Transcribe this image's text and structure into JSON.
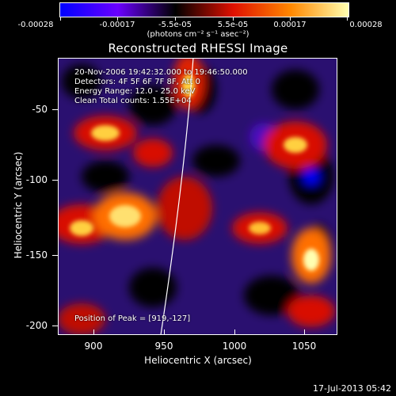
{
  "colorbar": {
    "tick_labels": [
      "-0.00028",
      "-0.00017",
      "-5.5e-05",
      "5.5e-05",
      "0.00017",
      "0.00028"
    ],
    "units": "(photons cm⁻² s⁻¹ asec⁻²)",
    "colors": [
      "#0000ff",
      "#6a00ff",
      "#000000",
      "#e01000",
      "#ff8800",
      "#ffffb0"
    ]
  },
  "title": "Reconstructed RHESSI Image",
  "info": {
    "time_range": "20-Nov-2006 19:42:32.000 to 19:46:50.000",
    "detectors": "Detectors: 4F 5F 6F 7F 8F, Att 0",
    "energy": "Energy Range: 12.0 - 25.0 keV",
    "clean": "Clean    Total counts: 1.55E+04",
    "peak": "Position of Peak = [919,-127]"
  },
  "axes": {
    "xlabel": "Heliocentric X (arcsec)",
    "ylabel": "Heliocentric Y (arcsec)",
    "xticks": [
      "900",
      "950",
      "1000",
      "1050"
    ],
    "yticks": [
      "-50",
      "-100",
      "-150",
      "-200"
    ]
  },
  "timestamp": "17-Jul-2013 05:42"
}
